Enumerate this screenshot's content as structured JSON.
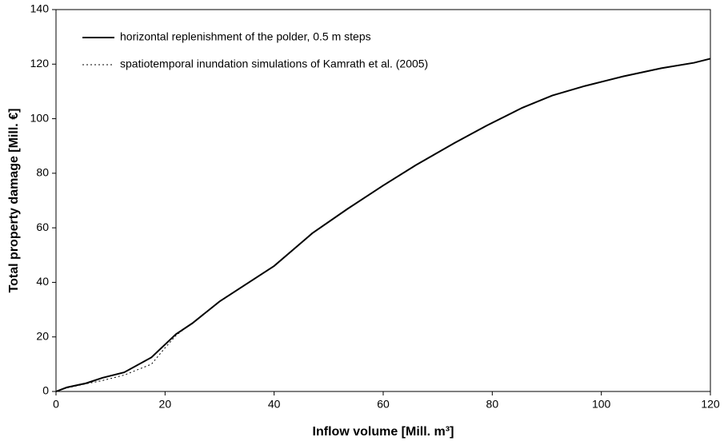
{
  "chart_data": {
    "type": "line",
    "xlabel": "Inflow volume [Mill. m³]",
    "ylabel": "Total property damage [Mill. €]",
    "xlim": [
      0,
      120
    ],
    "xticks": [
      0,
      20,
      40,
      60,
      80,
      100,
      120
    ],
    "ylim": [
      0,
      140
    ],
    "yticks": [
      0,
      20,
      40,
      60,
      80,
      100,
      120,
      140
    ],
    "grid": false,
    "legend": "upper left",
    "series": [
      {
        "name": "horizontal replenishment of the polder, 0.5 m steps",
        "color": "#000000",
        "style": "solid",
        "x": [
          0,
          2,
          5.5,
          8.5,
          12.5,
          17.5,
          22,
          25,
          30,
          40,
          47,
          53.5,
          60,
          66,
          73,
          79,
          85.5,
          91,
          97,
          104,
          111,
          117,
          120
        ],
        "values": [
          0,
          1.5,
          3,
          5,
          7,
          12.5,
          21,
          25,
          33,
          46,
          58,
          67,
          75.5,
          83,
          91,
          97.5,
          104,
          108.5,
          112,
          115.5,
          118.5,
          120.5,
          122
        ]
      },
      {
        "name": "spatiotemporal inundation simulations of Kamrath et al. (2005)",
        "color": "#000000",
        "style": "dotted",
        "x": [
          0,
          2,
          5.5,
          8.5,
          12.5,
          17.5,
          20,
          22,
          24.5
        ],
        "values": [
          0,
          1.3,
          2.8,
          4,
          6,
          10,
          16,
          20.5,
          24.5
        ]
      }
    ]
  }
}
